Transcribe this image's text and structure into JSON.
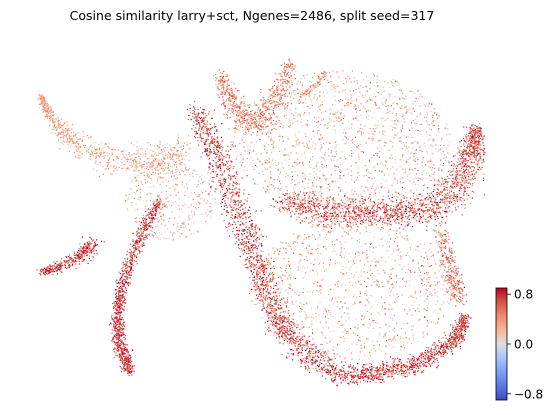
{
  "chart_data": {
    "type": "scatter",
    "title": "Cosine similarity larry+sct, Ngenes=2486, split seed=317",
    "xlabel": "",
    "ylabel": "",
    "grid": false,
    "axes_visible": false,
    "colormap": "coolwarm",
    "colorbar": {
      "vmin": -0.9,
      "vmax": 0.9,
      "ticks": [
        0.8,
        0.0,
        -0.8
      ],
      "tick_labels": [
        "0.8",
        "0.0",
        "−0.8"
      ],
      "placement": "bottom-right"
    },
    "colors": {
      "high": "#b40426",
      "mid": "#dddddd",
      "low": "#3b4cc0"
    }
  }
}
